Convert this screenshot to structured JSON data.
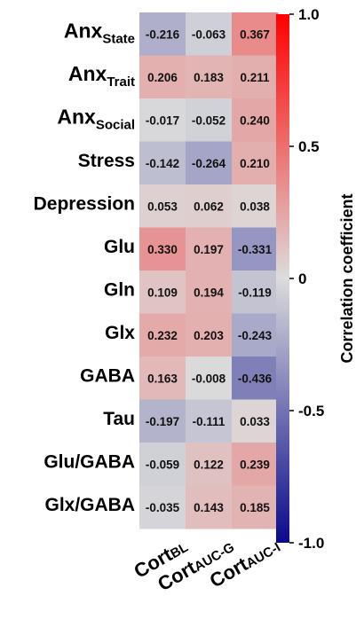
{
  "chart_data": {
    "type": "heatmap",
    "rows": [
      {
        "label": "Anx",
        "sub": "State"
      },
      {
        "label": "Anx",
        "sub": "Trait"
      },
      {
        "label": "Anx",
        "sub": "Social"
      },
      {
        "label": "Stress",
        "sub": ""
      },
      {
        "label": "Depression",
        "sub": ""
      },
      {
        "label": "Glu",
        "sub": ""
      },
      {
        "label": "Gln",
        "sub": ""
      },
      {
        "label": "Glx",
        "sub": ""
      },
      {
        "label": "GABA",
        "sub": ""
      },
      {
        "label": "Tau",
        "sub": ""
      },
      {
        "label": "Glu/GABA",
        "sub": ""
      },
      {
        "label": "Glx/GABA",
        "sub": ""
      }
    ],
    "columns": [
      {
        "label": "Cort",
        "sub": "BL"
      },
      {
        "label": "Cort",
        "sub": "AUC-G"
      },
      {
        "label": "Cort",
        "sub": "AUC-I"
      }
    ],
    "values": [
      [
        -0.216,
        -0.063,
        0.367
      ],
      [
        0.206,
        0.183,
        0.211
      ],
      [
        -0.017,
        -0.052,
        0.24
      ],
      [
        -0.142,
        -0.264,
        0.21
      ],
      [
        0.053,
        0.062,
        0.038
      ],
      [
        0.33,
        0.197,
        -0.331
      ],
      [
        0.109,
        0.194,
        -0.119
      ],
      [
        0.232,
        0.203,
        -0.243
      ],
      [
        0.163,
        -0.008,
        -0.436
      ],
      [
        -0.197,
        -0.111,
        0.033
      ],
      [
        -0.059,
        0.122,
        0.239
      ],
      [
        -0.035,
        0.143,
        0.185
      ]
    ],
    "value_labels": [
      [
        "-0.216",
        "-0.063",
        "0.367"
      ],
      [
        "0.206",
        "0.183",
        "0.211"
      ],
      [
        "-0.017",
        "-0.052",
        "0.240"
      ],
      [
        "-0.142",
        "-0.264",
        "0.210"
      ],
      [
        "0.053",
        "0.062",
        "0.038"
      ],
      [
        "0.330",
        "0.197",
        "-0.331"
      ],
      [
        "0.109",
        "0.194",
        "-0.119"
      ],
      [
        "0.232",
        "0.203",
        "-0.243"
      ],
      [
        "0.163",
        "-0.008",
        "-0.436"
      ],
      [
        "-0.197",
        "-0.111",
        "0.033"
      ],
      [
        "-0.059",
        "0.122",
        "0.239"
      ],
      [
        "-0.035",
        "0.143",
        "0.185"
      ]
    ],
    "colorbar": {
      "label": "Correlation coefficient",
      "range": [
        -1.0,
        1.0
      ],
      "ticks": [
        1.0,
        0.5,
        0,
        -0.5,
        -1.0
      ],
      "tick_labels": [
        "1.0",
        "0.5",
        "0",
        "-0.5",
        "-1.0"
      ],
      "colors": {
        "low": "#0a0a8c",
        "mid": "#dcdcdc",
        "high": "#ff0000"
      }
    },
    "grid": false,
    "colorbar_placement": "right"
  }
}
